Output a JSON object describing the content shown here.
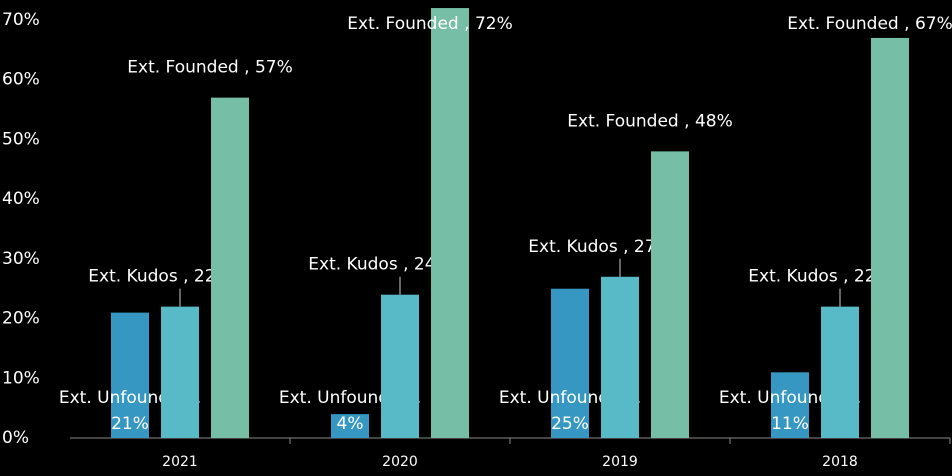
{
  "chart_data": {
    "type": "bar",
    "categories": [
      "2021",
      "2020",
      "2019",
      "2018"
    ],
    "label_separator": " , ",
    "series": [
      {
        "name": "Ext. Unfounded",
        "color": "#3597c2",
        "values": [
          21,
          4,
          25,
          11
        ],
        "value_labels": [
          "21%",
          "4%",
          "25%",
          "11%"
        ]
      },
      {
        "name": "Ext. Kudos",
        "color": "#58bac6",
        "values": [
          22,
          24,
          27,
          22
        ],
        "value_labels": [
          "22%",
          "24%",
          "27%",
          "22%"
        ]
      },
      {
        "name": "Ext. Founded",
        "color": "#76bea6",
        "values": [
          57,
          72,
          48,
          67
        ],
        "value_labels": [
          "57%",
          "72%",
          "48%",
          "67%"
        ]
      }
    ],
    "ylim": [
      0,
      70
    ],
    "yticks": [
      {
        "value": 0,
        "label": "0%"
      },
      {
        "value": 10,
        "label": "10%"
      },
      {
        "value": 20,
        "label": "20%"
      },
      {
        "value": 30,
        "label": "30%"
      },
      {
        "value": 40,
        "label": "40%"
      },
      {
        "value": 50,
        "label": "50%"
      },
      {
        "value": 60,
        "label": "60%"
      },
      {
        "value": 70,
        "label": "70%"
      }
    ]
  }
}
